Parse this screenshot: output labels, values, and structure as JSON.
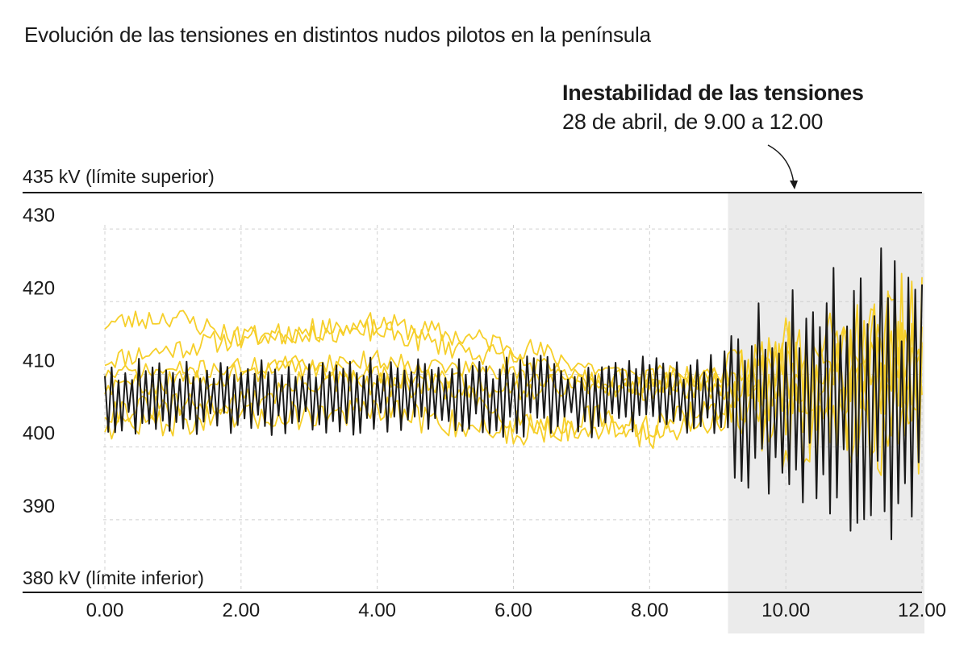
{
  "chart_data": {
    "type": "line",
    "title": "Evolución de las tensiones en distintos nudos pilotos en la península",
    "annotation": {
      "title": "Inestabilidad de las tensiones",
      "subtitle": "28 de abril, de 9.00 a 12.00",
      "highlight_x": [
        9.15,
        12.0
      ],
      "highlight_color": "#ebebeb"
    },
    "x_ticks": [
      "0.00",
      "2.00",
      "4.00",
      "6.00",
      "8.00",
      "10.00",
      "12.00"
    ],
    "y_ticks": [
      "430",
      "420",
      "410",
      "400",
      "390"
    ],
    "upper_limit": {
      "value": 435,
      "label": "435 kV (límite superior)"
    },
    "lower_limit": {
      "value": 380,
      "label": "380 kV (límite inferior)"
    },
    "xlim": [
      0,
      12
    ],
    "ylim": [
      380,
      435
    ],
    "grid": true,
    "colors": {
      "highlight_series": "#1a1a1a",
      "other_series": "#f6cf2a",
      "grid": "#d0d0d0"
    },
    "series": [
      {
        "color": "#1a1a1a",
        "center": [
          [
            0,
            407
          ],
          [
            9,
            407
          ],
          [
            12,
            407
          ]
        ],
        "amp": [
          [
            0,
            4
          ],
          [
            9,
            4.5
          ],
          [
            9.2,
            9
          ],
          [
            10.5,
            13
          ],
          [
            11.5,
            17
          ],
          [
            12,
            12
          ]
        ],
        "seed": 7,
        "freq": 3
      },
      {
        "color": "#f6cf2a",
        "center": [
          [
            0,
            412
          ],
          [
            2,
            415
          ],
          [
            4,
            417
          ],
          [
            6,
            414
          ],
          [
            7.5,
            410
          ],
          [
            9,
            409
          ],
          [
            10.5,
            412
          ],
          [
            12,
            413
          ]
        ],
        "amp": [
          [
            0,
            1.5
          ],
          [
            9,
            1.8
          ],
          [
            10,
            7
          ],
          [
            12,
            9
          ]
        ],
        "seed": 11,
        "freq": 1
      },
      {
        "color": "#f6cf2a",
        "center": [
          [
            0,
            417
          ],
          [
            1,
            418
          ],
          [
            2,
            415
          ],
          [
            3,
            416
          ],
          [
            4,
            416
          ],
          [
            6,
            412
          ],
          [
            7,
            409
          ],
          [
            8,
            408
          ],
          [
            9,
            410
          ],
          [
            12,
            415
          ]
        ],
        "amp": [
          [
            0,
            1.5
          ],
          [
            9,
            1.8
          ],
          [
            10,
            8
          ],
          [
            12,
            10
          ]
        ],
        "seed": 23,
        "freq": 1
      },
      {
        "color": "#f6cf2a",
        "center": [
          [
            0,
            405
          ],
          [
            2,
            406
          ],
          [
            3,
            409
          ],
          [
            5,
            408
          ],
          [
            6,
            404
          ],
          [
            7,
            402
          ],
          [
            8,
            403
          ],
          [
            9,
            405
          ],
          [
            12,
            408
          ]
        ],
        "amp": [
          [
            0,
            1.8
          ],
          [
            9,
            2
          ],
          [
            10,
            8
          ],
          [
            12,
            11
          ]
        ],
        "seed": 31,
        "freq": 1
      },
      {
        "color": "#f6cf2a",
        "center": [
          [
            0,
            403
          ],
          [
            2,
            404
          ],
          [
            4,
            405
          ],
          [
            6,
            402
          ],
          [
            7,
            404
          ],
          [
            8,
            402
          ],
          [
            9,
            404
          ],
          [
            12,
            406
          ]
        ],
        "amp": [
          [
            0,
            1.6
          ],
          [
            9,
            2
          ],
          [
            10,
            7
          ],
          [
            12,
            10
          ]
        ],
        "seed": 47,
        "freq": 2
      },
      {
        "color": "#f6cf2a",
        "center": [
          [
            0,
            408
          ],
          [
            3,
            411
          ],
          [
            4,
            410
          ],
          [
            6,
            408
          ],
          [
            7,
            409
          ],
          [
            8,
            409
          ],
          [
            9,
            410
          ],
          [
            12,
            411
          ]
        ],
        "amp": [
          [
            0,
            1.5
          ],
          [
            9,
            1.8
          ],
          [
            10,
            6
          ],
          [
            12,
            9
          ]
        ],
        "seed": 59,
        "freq": 1
      },
      {
        "color": "#f6cf2a",
        "center": [
          [
            0,
            410
          ],
          [
            4,
            412
          ],
          [
            6,
            410
          ],
          [
            7,
            409
          ],
          [
            8,
            408
          ],
          [
            9,
            408
          ],
          [
            12,
            410
          ]
        ],
        "amp": [
          [
            0,
            1.2
          ],
          [
            9,
            1.5
          ],
          [
            10,
            7
          ],
          [
            12,
            9
          ]
        ],
        "seed": 71,
        "freq": 1
      }
    ]
  }
}
